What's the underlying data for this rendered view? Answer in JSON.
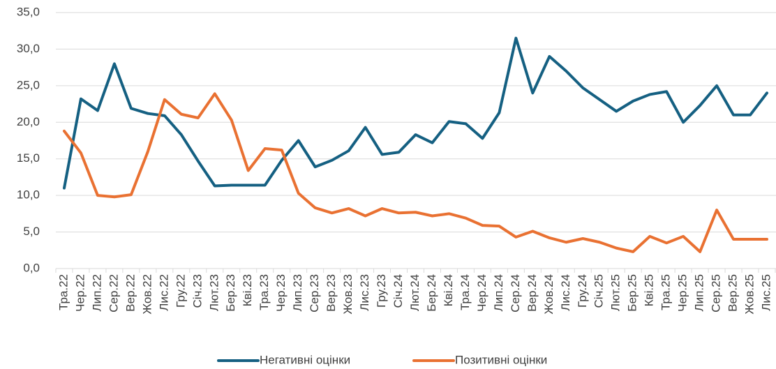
{
  "chart_data": {
    "type": "line",
    "categories": [
      "Тра.22",
      "Чер.22",
      "Лип.22",
      "Сер.22",
      "Вер.22",
      "Жов.22",
      "Лис.22",
      "Гру.22",
      "Січ.23",
      "Лют.23",
      "Бер.23",
      "Кві.23",
      "Тра.23",
      "Чер.23",
      "Лип.23",
      "Сер.23",
      "Вер.23",
      "Жов.23",
      "Лис.23",
      "Гру.23",
      "Січ.24",
      "Лют.24",
      "Бер.24",
      "Кві.24",
      "Тра.24",
      "Чер.24",
      "Лип.24",
      "Сер.24",
      "Вер.24",
      "Жов.24",
      "Лис.24",
      "Гру.24",
      "Січ.25",
      "Лют.25",
      "Бер.25",
      "Кві.25",
      "Тра.25",
      "Чер.25",
      "Лип.25",
      "Сер.25",
      "Вер.25",
      "Жов.25",
      "Лис.25"
    ],
    "series": [
      {
        "name": "Негативні оцінки",
        "color": "#156082",
        "values": [
          11.0,
          23.2,
          21.6,
          28.0,
          21.9,
          21.2,
          20.9,
          18.3,
          14.7,
          11.3,
          11.4,
          11.4,
          11.4,
          14.8,
          17.5,
          13.9,
          14.8,
          16.1,
          19.3,
          15.6,
          15.9,
          18.3,
          17.2,
          20.1,
          19.8,
          17.8,
          21.3,
          31.5,
          24.0,
          29.0,
          27.0,
          24.7,
          23.1,
          21.5,
          22.9,
          23.8,
          24.2,
          20.0,
          22.3,
          25.0,
          21.0,
          21.0,
          24.0
        ]
      },
      {
        "name": "Позитивні оцінки",
        "color": "#e97132",
        "values": [
          18.8,
          15.8,
          10.0,
          9.8,
          10.1,
          16.0,
          23.1,
          21.1,
          20.6,
          23.9,
          20.3,
          13.4,
          16.4,
          16.2,
          10.3,
          8.3,
          7.6,
          8.2,
          7.2,
          8.2,
          7.6,
          7.7,
          7.2,
          7.5,
          6.9,
          5.9,
          5.8,
          4.3,
          5.1,
          4.2,
          3.6,
          4.1,
          3.6,
          2.8,
          2.3,
          4.4,
          3.5,
          4.4,
          2.3,
          8.0,
          4.0,
          4.0,
          4.0
        ]
      }
    ],
    "ylim": [
      0,
      35
    ],
    "yticks": [
      {
        "value": 0,
        "label": "0,0"
      },
      {
        "value": 5,
        "label": "5,0"
      },
      {
        "value": 10,
        "label": "10,0"
      },
      {
        "value": 15,
        "label": "15,0"
      },
      {
        "value": 20,
        "label": "20,0"
      },
      {
        "value": 25,
        "label": "25,0"
      },
      {
        "value": 30,
        "label": "30,0"
      },
      {
        "value": 35,
        "label": "35,0"
      }
    ],
    "grid": true,
    "legend": "bottom"
  }
}
